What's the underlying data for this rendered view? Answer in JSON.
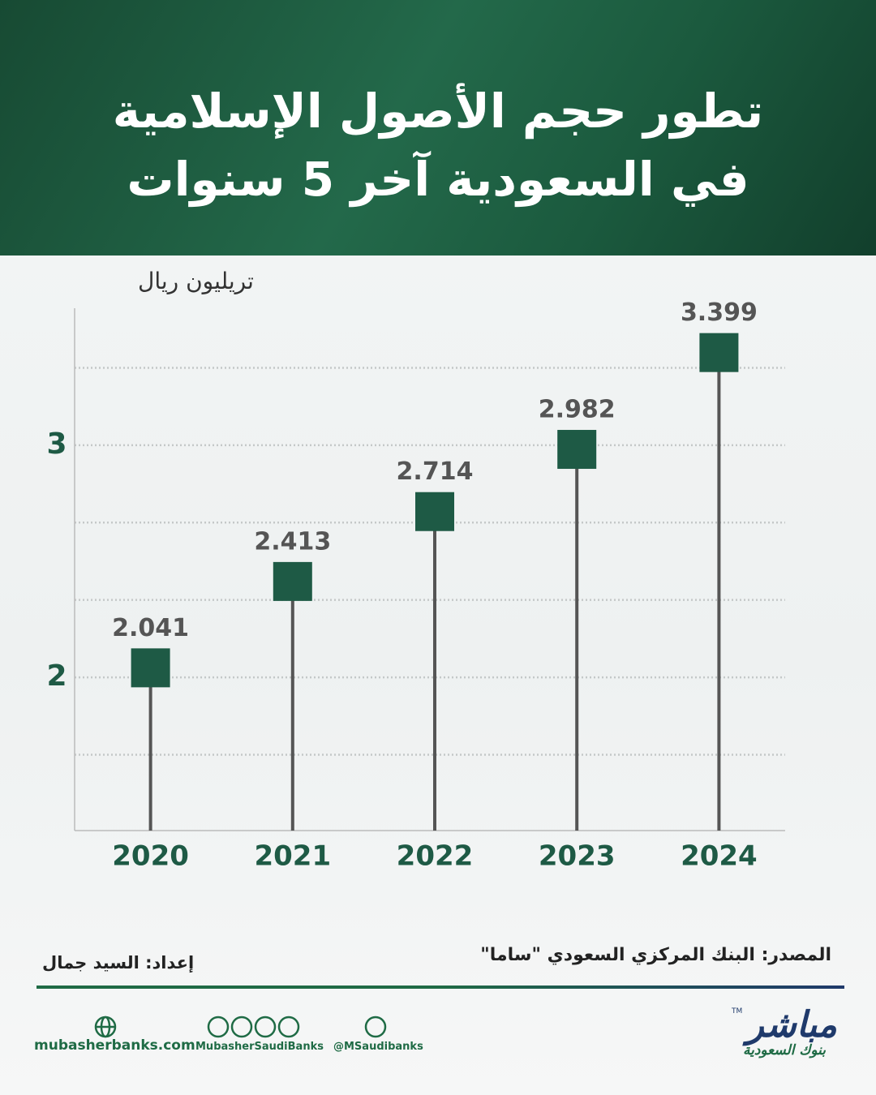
{
  "chart_data": {
    "type": "lollipop",
    "title": "تطور حجم الأصول الإسلامية في السعودية آخر 5 سنوات",
    "ylabel": "تريليون ريال",
    "categories": [
      "2020",
      "2021",
      "2022",
      "2023",
      "2024"
    ],
    "values": [
      2.041,
      2.413,
      2.714,
      2.982,
      3.399
    ],
    "color": "#1e5a45",
    "stem_color": "#555555",
    "ylim": [
      1.34,
      3.59
    ],
    "yticks": [
      2,
      3
    ],
    "grid": true,
    "minor_grid": 3
  },
  "footer": {
    "source": "المصدر: البنك المركزي السعودي \"ساما\"",
    "credit": "إعداد: السيد جمال",
    "website": "mubasherbanks.com",
    "social": "MubasherSaudiBanks",
    "twitter": "@MSaudibanks",
    "logo": "مباشر",
    "logo_mark": "TM",
    "logo_subtitle": "بنوك السعودية"
  }
}
